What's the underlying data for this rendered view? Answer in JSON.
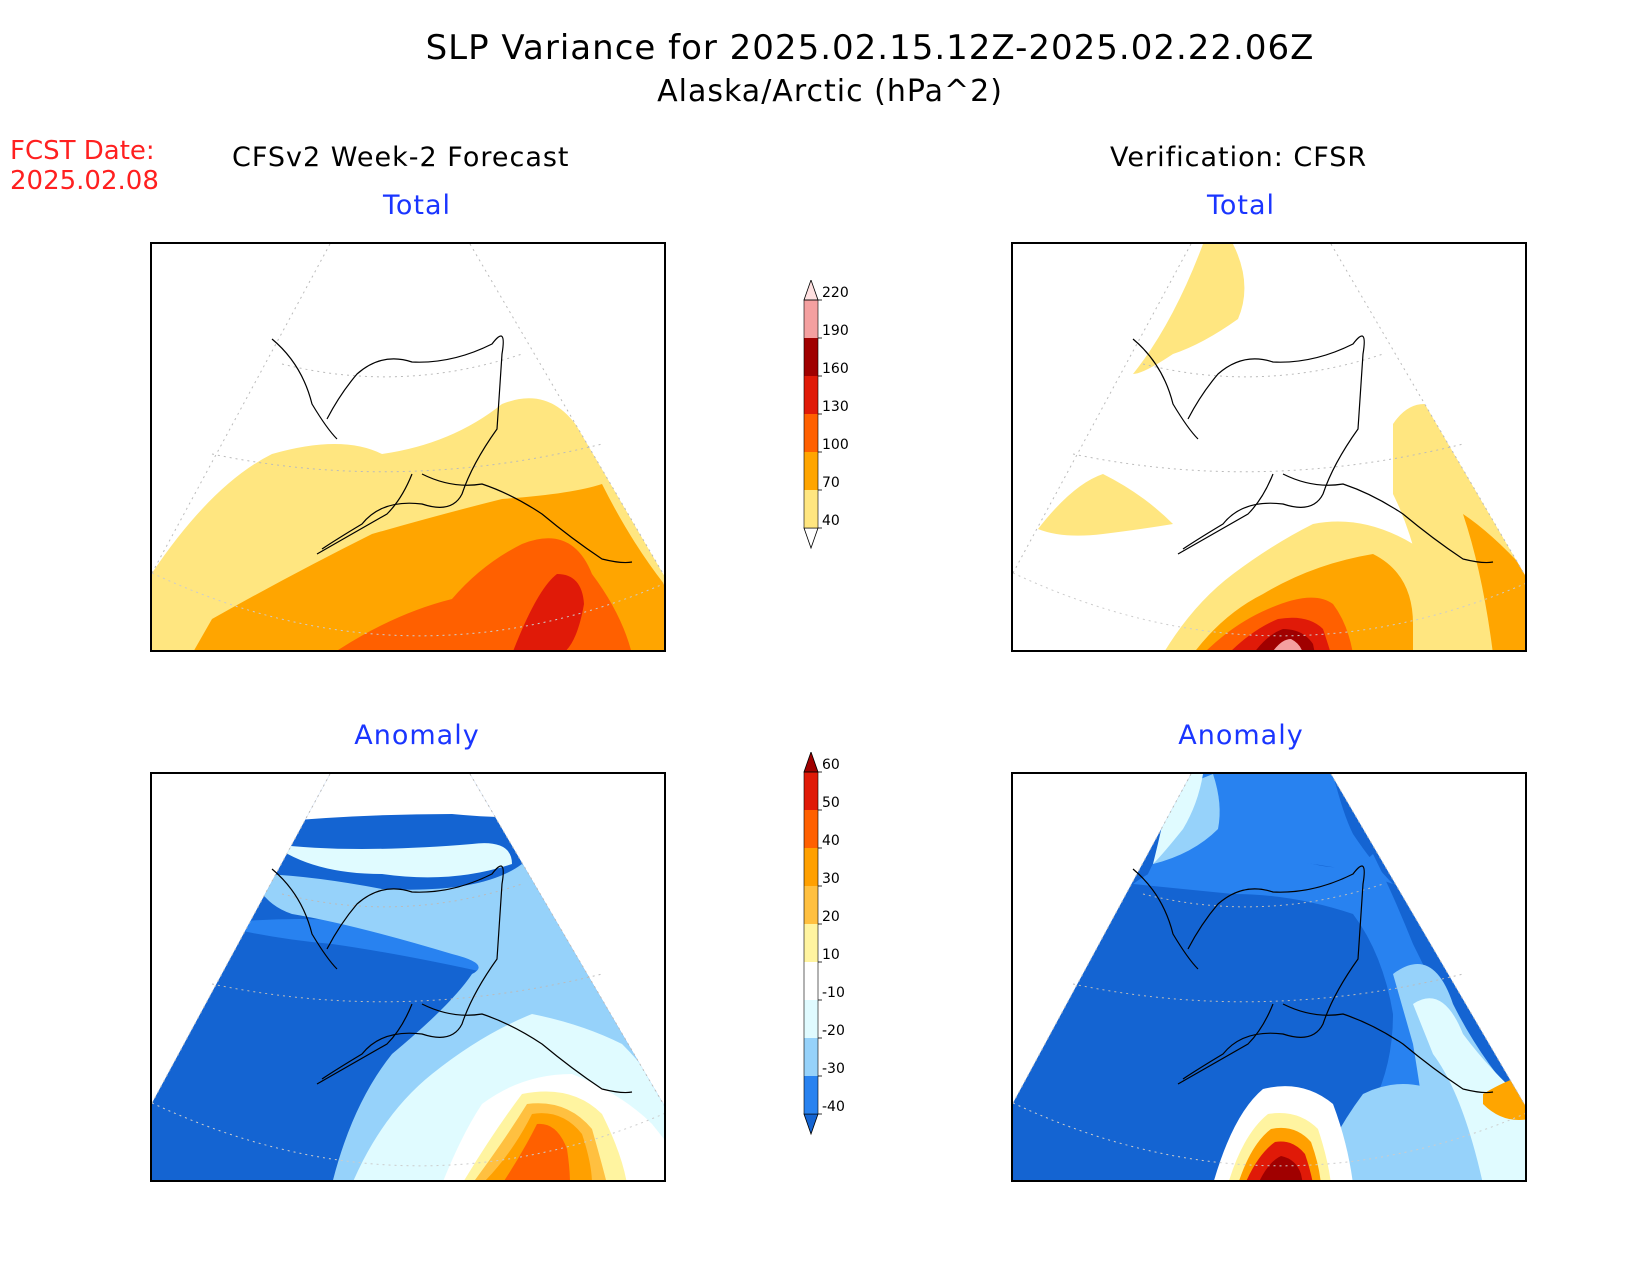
{
  "header": {
    "title": "SLP Variance for 2025.02.15.12Z-2025.02.22.06Z",
    "subtitle": "Alaska/Arctic (hPa^2)",
    "fcst_label": "FCST Date:",
    "fcst_date": "2025.02.08"
  },
  "columns": {
    "left": "CFSv2 Week-2 Forecast",
    "right": "Verification: CFSR"
  },
  "panels": {
    "total_label": "Total",
    "anomaly_label": "Anomaly"
  },
  "colorbars": {
    "total": {
      "labels": [
        "40",
        "70",
        "100",
        "130",
        "160",
        "190",
        "220"
      ],
      "colors": [
        "#ffffff",
        "#ffe680",
        "#ffa500",
        "#ff6000",
        "#e01a08",
        "#a00000",
        "#f4a0a0",
        "#ffe0e0"
      ]
    },
    "anomaly": {
      "labels": [
        "-40",
        "-30",
        "-20",
        "-10",
        "10",
        "20",
        "30",
        "40",
        "50",
        "60"
      ],
      "colors": [
        "#1464d2",
        "#2882f0",
        "#96d2fa",
        "#e0fbff",
        "#ffffff",
        "#fff4a0",
        "#ffc040",
        "#ffa000",
        "#ff6000",
        "#e01a08",
        "#a00000"
      ]
    }
  }
}
